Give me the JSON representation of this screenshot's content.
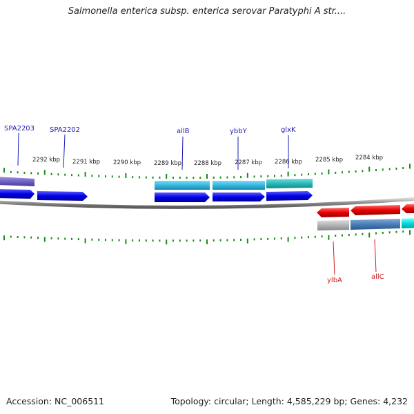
{
  "title": "Salmonella enterica subsp. enterica serovar Paratyphi A str....",
  "footer": {
    "accession": "Accession: NC_006511",
    "summary": "Topology: circular; Length: 4,585,229 bp; Genes: 4,232"
  },
  "colors": {
    "forward_gene": "#0000e6",
    "reverse_gene": "#e60000",
    "tick": "#1a8a1a",
    "backbone": "#888888",
    "cog_purple": "#6f63c4",
    "cog_cyan": "#33b8e0",
    "cog_teal": "#2ab8b8",
    "cog_gray": "#b3b3b3",
    "cog_steelblue": "#4a7fb8",
    "cog_aqua": "#00dede",
    "label_forward": "#1a1ab3",
    "label_reverse": "#cc1a1a"
  },
  "ruler_labels": [
    "2292 kbp",
    "2291 kbp",
    "2290 kbp",
    "2289 kbp",
    "2288 kbp",
    "2287 kbp",
    "2286 kbp",
    "2285 kbp",
    "2284 kbp"
  ],
  "gene_labels_forward": [
    "SPA2203",
    "SPA2202",
    "allB",
    "ybbY",
    "glxK"
  ],
  "gene_labels_reverse": [
    "ylbA",
    "allC"
  ]
}
